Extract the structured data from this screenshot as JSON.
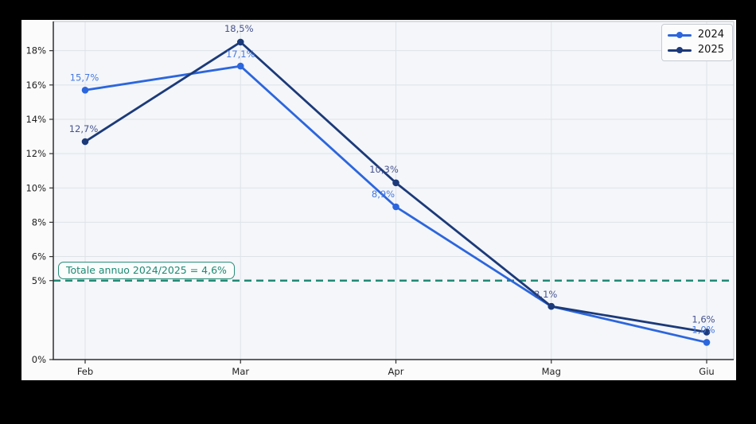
{
  "chart_data": {
    "type": "line",
    "categories": [
      "Feb",
      "Mar",
      "Apr",
      "Mag",
      "Giu"
    ],
    "series": [
      {
        "name": "2024",
        "color": "#2c66dd",
        "label_color": "#4679e2",
        "values": [
          15.7,
          17.1,
          8.9,
          3.1,
          1.0
        ],
        "point_labels": [
          "15,7%",
          "17,1%",
          "8,9%",
          "",
          "1,0%"
        ],
        "label_offsets": [
          [
            -1,
            -16
          ],
          [
            0,
            -15
          ],
          [
            -16,
            -16
          ],
          [
            0,
            0
          ],
          [
            -4,
            -16
          ]
        ]
      },
      {
        "name": "2025",
        "color": "#1c3a79",
        "label_color": "#47538f",
        "values": [
          12.7,
          18.5,
          10.3,
          3.1,
          1.6
        ],
        "point_labels": [
          "12,7%",
          "18,5%",
          "10,3%",
          "3,1%",
          "1,6%"
        ],
        "label_offsets": [
          [
            -2,
            -16
          ],
          [
            -2,
            -17
          ],
          [
            -15,
            -17
          ],
          [
            -7,
            -15
          ],
          [
            -4,
            -16
          ]
        ]
      }
    ],
    "y_ticks": [
      {
        "value": 0,
        "label": "0%",
        "grid": false
      },
      {
        "value": 4.6,
        "label": "5%",
        "grid": false
      },
      {
        "value": 6,
        "label": "6%",
        "grid": true
      },
      {
        "value": 8,
        "label": "8%",
        "grid": true
      },
      {
        "value": 10,
        "label": "10%",
        "grid": true
      },
      {
        "value": 12,
        "label": "12%",
        "grid": true
      },
      {
        "value": 14,
        "label": "14%",
        "grid": true
      },
      {
        "value": 16,
        "label": "16%",
        "grid": true
      },
      {
        "value": 18,
        "label": "18%",
        "grid": true
      }
    ],
    "ylim": [
      0,
      19.7
    ],
    "grid": true,
    "reference_line": {
      "value": 4.6,
      "color": "#1f8a75",
      "style": "dashed"
    },
    "annotation": {
      "text": "Totale annuo 2024/2025 = 4,6%",
      "color": "#1e8a74"
    },
    "legend": {
      "position": "upper-right"
    }
  },
  "style_colors": {
    "figure_bg": "#fbfbfc",
    "plot_bg": "#f4f6f9",
    "grid": "#dee3e9",
    "spine_dark": "#2f2f2f",
    "spine_light": "#c7ccd3",
    "tick_text": "#1d1d1d"
  }
}
